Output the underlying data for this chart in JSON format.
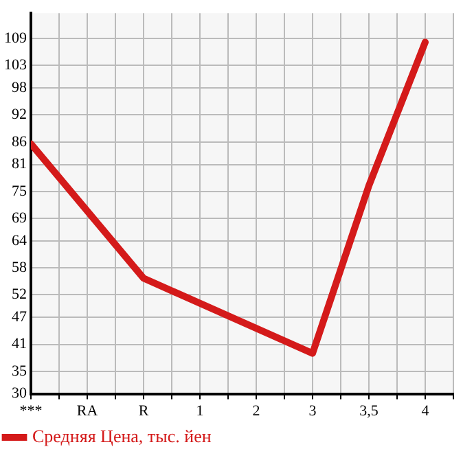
{
  "chart_data": {
    "type": "line",
    "categories": [
      "***",
      "RA",
      "R",
      "1",
      "2",
      "3",
      "3,5",
      "4"
    ],
    "series": [
      {
        "name": "Средняя Цена, тыс. йен",
        "color": "#d41a1a",
        "values": [
          85.6,
          null,
          55.7,
          null,
          null,
          39.0,
          76.3,
          108.2
        ]
      }
    ],
    "ylim": [
      30,
      114.64
    ],
    "yticks": [
      30,
      35,
      41,
      47,
      52,
      58,
      64,
      69,
      75,
      81,
      86,
      92,
      98,
      103,
      109
    ],
    "grid": true,
    "legend": "bottom left",
    "marker": "none",
    "line_style": "solid"
  }
}
